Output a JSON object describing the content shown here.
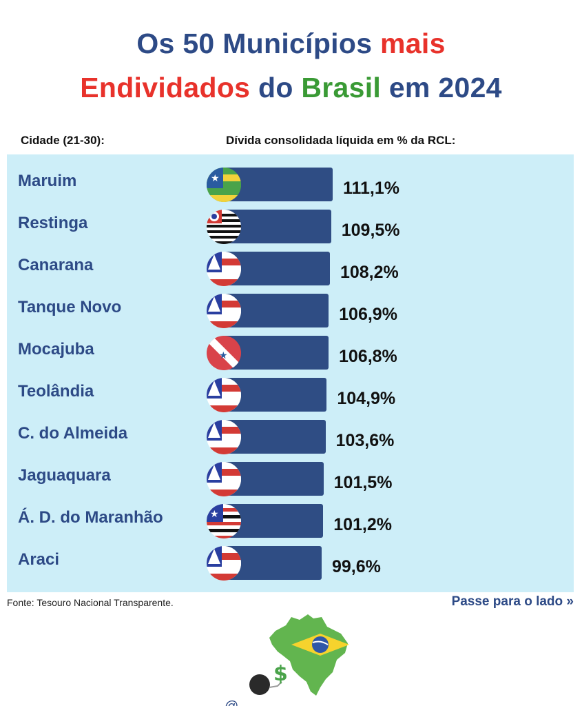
{
  "header": {
    "title_line1": [
      {
        "text": "Os 50 Municípios ",
        "color": "navy"
      },
      {
        "text": "mais",
        "color": "red"
      }
    ],
    "title_line2": [
      {
        "text": "Endividados ",
        "color": "red"
      },
      {
        "text": "do ",
        "color": "navy"
      },
      {
        "text": "Brasil",
        "color": "green"
      },
      {
        "text": " em 2024",
        "color": "navy"
      }
    ],
    "col_city": "Cidade (21-30):",
    "col_value": "Dívida consolidada líquida em % da RCL:"
  },
  "colors": {
    "navy": "#2d4a86",
    "red": "#e8322b",
    "green": "#3a9a35",
    "bar": "#2f4d84",
    "panel": "#cdeef8"
  },
  "chart_data": {
    "type": "bar",
    "orientation": "horizontal",
    "title": "Os 50 Municípios mais Endividados do Brasil em 2024",
    "xlabel": "Dívida consolidada líquida em % da RCL:",
    "ylabel": "Cidade (21-30):",
    "unit": "%",
    "categories": [
      "Maruim",
      "Restinga",
      "Canarana",
      "Tanque Novo",
      "Mocajuba",
      "Teolândia",
      "C. do Almeida",
      "Jaguaquara",
      "Á. D. do Maranhão",
      "Araci"
    ],
    "values": [
      111.1,
      109.5,
      108.2,
      106.9,
      106.8,
      104.9,
      103.6,
      101.5,
      101.2,
      99.6
    ],
    "labels": [
      "111,1%",
      "109,5%",
      "108,2%",
      "106,9%",
      "106,8%",
      "104,9%",
      "103,6%",
      "101,5%",
      "101,2%",
      "99,6%"
    ],
    "flags": [
      "sergipe-flag-icon",
      "sao-paulo-flag-icon",
      "bahia-flag-icon",
      "bahia-flag-icon",
      "para-flag-icon",
      "bahia-flag-icon",
      "bahia-flag-icon",
      "bahia-flag-icon",
      "maranhao-flag-icon",
      "bahia-flag-icon"
    ],
    "grid": false,
    "legend": "none"
  },
  "footer": {
    "source": "Fonte: Tesouro Nacional Transparente.",
    "swipe_label": "Passe para o lado",
    "swipe_icon": "double-chevron-right-icon",
    "logo_icon": "brazil-map-debt-ball-logo",
    "logo_dollar": "$",
    "handle": "@"
  }
}
